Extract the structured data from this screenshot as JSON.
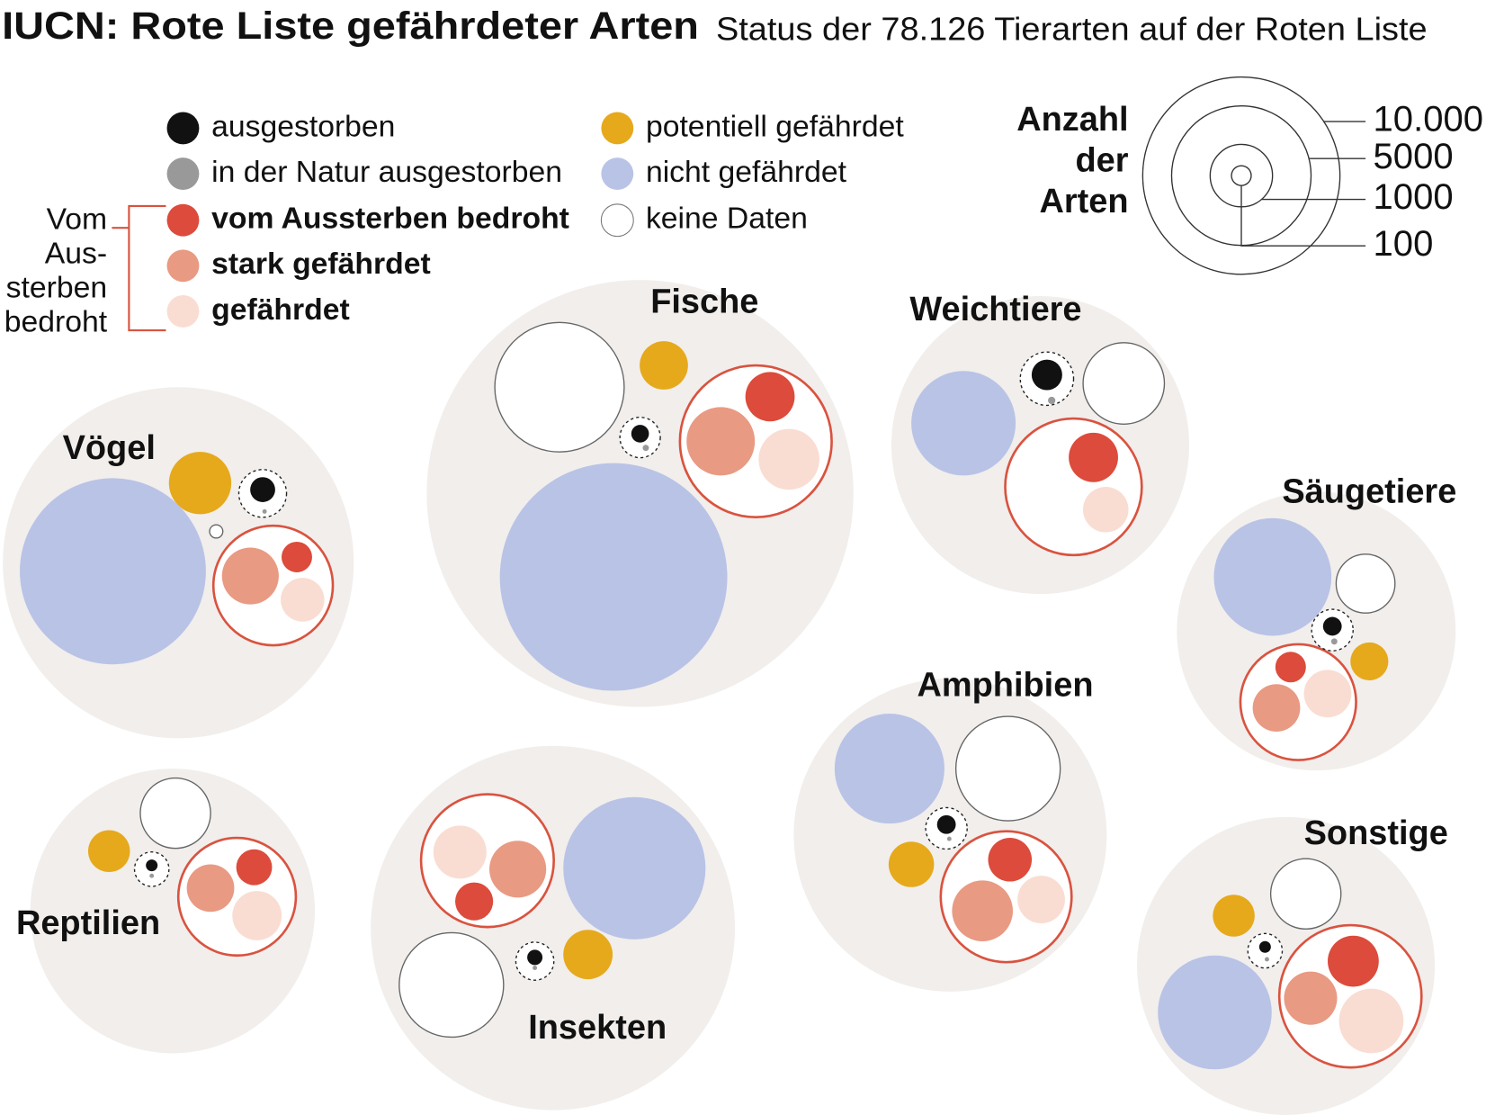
{
  "chart_data": {
    "type": "bubble",
    "title": "IUCN: Rote Liste gefährdeter Arten",
    "subtitle": "Status der 78.126 Tierarten auf der Roten Liste",
    "categories": [
      "Vögel",
      "Fische",
      "Weichtiere",
      "Säugetiere",
      "Amphibien",
      "Reptilien",
      "Insekten",
      "Sonstige"
    ],
    "series": [
      {
        "name": "ausgestorben",
        "color": "#111111",
        "values": [
          160,
          80,
          240,
          90,
          90,
          35,
          60,
          35
        ]
      },
      {
        "name": "in der Natur ausgestorben",
        "color": "#999999",
        "values": [
          5,
          10,
          14,
          10,
          5,
          5,
          5,
          5
        ]
      },
      {
        "name": "vom Aussterben bedroht",
        "color": "#dc4b3b",
        "values": [
          240,
          625,
          625,
          240,
          490,
          330,
          370,
          670
        ]
      },
      {
        "name": "stark gefährdet",
        "color": "#e99a83",
        "values": [
          830,
          1200,
          0,
          580,
          950,
          580,
          830,
          725
        ]
      },
      {
        "name": "gefährdet",
        "color": "#f9ddd2",
        "values": [
          490,
          950,
          530,
          580,
          580,
          625,
          725,
          1070
        ]
      },
      {
        "name": "potentiell gefährdet",
        "color": "#e6a91c",
        "values": [
          1000,
          600,
          0,
          370,
          530,
          450,
          625,
          450
        ]
      },
      {
        "name": "nicht gefährdet",
        "color": "#b9c3e6",
        "values": [
          8900,
          13300,
          2800,
          3550,
          3100,
          null,
          5200,
          3330
        ]
      },
      {
        "name": "keine Daten",
        "color": "#ffffff",
        "values": [
          45,
          4300,
          1700,
          890,
          2800,
          1270,
          2800,
          1270
        ]
      }
    ],
    "bracket_label": [
      "Vom",
      "Aus-",
      "sterben",
      "bedroht"
    ],
    "size_title": [
      "Anzahl",
      "der",
      "Arten"
    ],
    "size_ticks": [
      {
        "value": 10000,
        "label": "10.000"
      },
      5000,
      1000,
      100
    ]
  }
}
